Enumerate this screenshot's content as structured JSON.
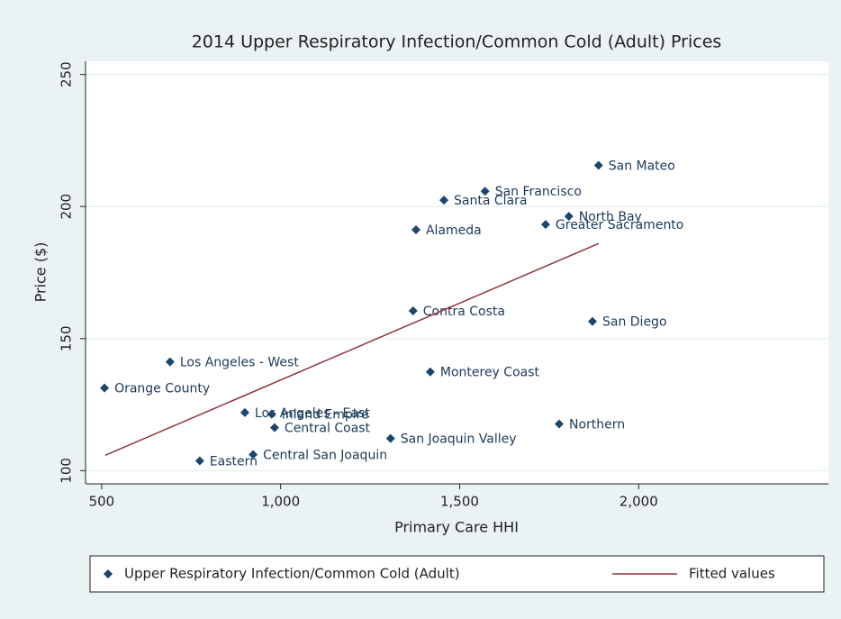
{
  "chart_data": {
    "type": "scatter",
    "title": "2014 Upper Respiratory Infection/Common Cold (Adult) Prices",
    "x_label": "Primary Care HHI",
    "y_label": "Price ($)",
    "xlim": [
      455,
      2530
    ],
    "ylim": [
      95,
      255
    ],
    "xticks": [
      500,
      {
        "value": 1000,
        "label": "1,000"
      },
      {
        "value": 1500,
        "label": "1,500"
      },
      {
        "value": 2000,
        "label": "2,000"
      }
    ],
    "yticks": [
      100,
      150,
      200,
      250
    ],
    "grid": true,
    "legend": "bottom",
    "series": [
      {
        "name": "Upper Respiratory Infection/Common Cold (Adult)",
        "color": "#1a476f",
        "type": "scatter",
        "labels": [
          "San Mateo",
          "San Francisco",
          "Santa Clara",
          "North Bay",
          "Greater Sacramento",
          "Alameda",
          "Contra Costa",
          "San Diego",
          "Los Angeles - West",
          "Monterey Coast",
          "Orange County",
          "Los Angeles - East",
          "Inland Empire",
          "Central Coast",
          "Northern",
          "San Joaquin Valley",
          "Central San Joaquin",
          "Eastern"
        ],
        "x": [
          1888,
          1571,
          1456,
          1805,
          1740,
          1378,
          1370,
          1871,
          691,
          1418,
          508,
          900,
          975,
          983,
          1778,
          1307,
          923,
          774
        ],
        "values": [
          215.6,
          205.8,
          202.4,
          196.3,
          193.2,
          191.2,
          160.5,
          156.5,
          141.2,
          137.4,
          131.3,
          122,
          121.4,
          116.3,
          117.7,
          112.2,
          106.1,
          103.7
        ]
      },
      {
        "name": "Fitted values",
        "color": "#90353b",
        "type": "line",
        "x": [
          510,
          1888
        ],
        "values": [
          105.8,
          186
        ]
      }
    ]
  }
}
